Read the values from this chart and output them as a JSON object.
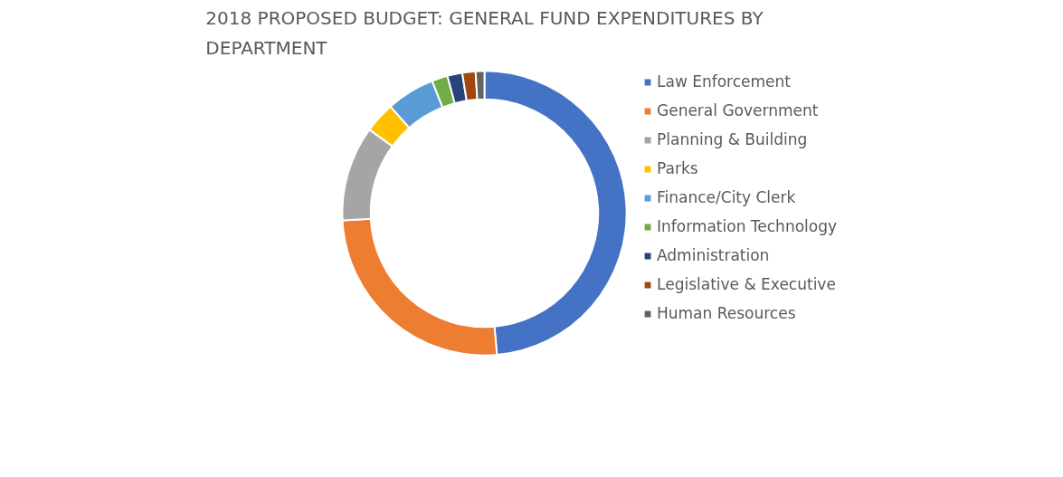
{
  "chart_data": {
    "type": "donut",
    "title": "2018 PROPOSED BUDGET: GENERAL FUND EXPENDITURES BY DEPARTMENT",
    "categories": [
      "Law Enforcement",
      "General Government",
      "Planning & Building",
      "Parks",
      "Finance/City Clerk",
      "Information Technology",
      "Administration",
      "Legislative & Executive",
      "Human Resources"
    ],
    "values": [
      48.6,
      25.6,
      10.8,
      3.5,
      5.5,
      1.8,
      1.7,
      1.5,
      1.0
    ],
    "colors": [
      "#4472c4",
      "#ed7d31",
      "#a5a5a5",
      "#ffc000",
      "#5b9bd5",
      "#70ad47",
      "#264478",
      "#9e480e",
      "#636363"
    ],
    "legend": "right"
  }
}
